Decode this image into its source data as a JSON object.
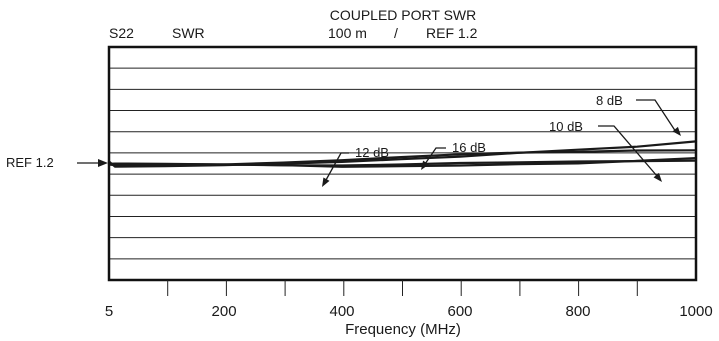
{
  "header": {
    "title": "COUPLED PORT SWR",
    "measurement": "S22",
    "format": "SWR",
    "scale_text": "100 m",
    "separator": "/",
    "ref_text": "REF 1.2"
  },
  "chart_data": {
    "type": "line",
    "title": "COUPLED PORT SWR",
    "xlabel": "Frequency (MHz)",
    "ylabel": "",
    "xlim": [
      5,
      1000
    ],
    "ylim": [
      0.8,
      1.3
    ],
    "xticks": [
      5,
      200,
      400,
      600,
      800,
      1000
    ],
    "xtick_labels": [
      "5",
      "200",
      "400",
      "600",
      "800",
      "1000"
    ],
    "x_divisions": 10,
    "y_divisions": 11,
    "grid": {
      "horizontal": true,
      "vertical": false
    },
    "scale_per_division": 0.1,
    "reference_level": 1.2,
    "reference_label": "REF 1.2",
    "series": [
      {
        "name": "8 dB",
        "x": [
          5,
          15,
          100,
          200,
          300,
          400,
          500,
          600,
          700,
          800,
          900,
          1000
        ],
        "y": [
          1.207,
          1.183,
          1.185,
          1.19,
          1.197,
          1.205,
          1.218,
          1.23,
          1.248,
          1.263,
          1.277,
          1.302
        ]
      },
      {
        "name": "10 dB",
        "x": [
          5,
          15,
          100,
          200,
          300,
          400,
          500,
          600,
          700,
          800,
          900,
          1000
        ],
        "y": [
          1.195,
          1.193,
          1.195,
          1.193,
          1.19,
          1.182,
          1.185,
          1.188,
          1.195,
          1.198,
          1.21,
          1.223
        ]
      },
      {
        "name": "12 dB",
        "x": [
          5,
          15,
          100,
          200,
          300,
          400,
          500,
          600,
          700,
          800,
          900,
          1000
        ],
        "y": [
          1.196,
          1.197,
          1.196,
          1.193,
          1.189,
          1.188,
          1.193,
          1.2,
          1.203,
          1.207,
          1.209,
          1.211
        ]
      },
      {
        "name": "16 dB",
        "x": [
          5,
          15,
          100,
          200,
          300,
          400,
          500,
          600,
          700,
          800,
          900,
          1000
        ],
        "y": [
          1.193,
          1.19,
          1.188,
          1.193,
          1.202,
          1.213,
          1.228,
          1.241,
          1.249,
          1.253,
          1.259,
          1.26
        ]
      }
    ],
    "annotations": [
      {
        "series": "8 dB",
        "text": "8  dB"
      },
      {
        "series": "10 dB",
        "text": "10  dB"
      },
      {
        "series": "12 dB",
        "text": "12  dB"
      },
      {
        "series": "16 dB",
        "text": "16  dB"
      }
    ]
  }
}
